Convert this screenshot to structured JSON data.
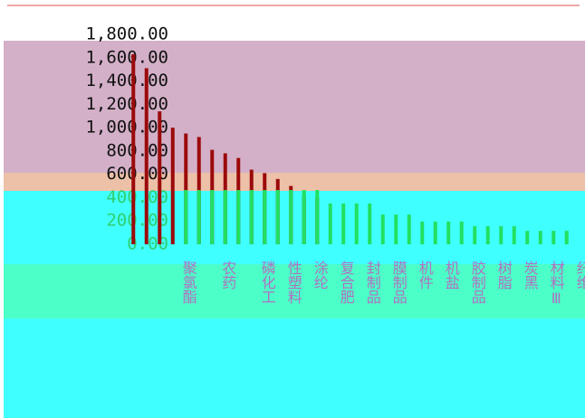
{
  "chart_data": {
    "type": "bar",
    "categories": [
      "聚氯酯",
      null,
      null,
      "农药",
      null,
      null,
      "磷化工",
      null,
      "性塑料",
      null,
      "涂纶",
      null,
      "复合肥",
      null,
      "封制品",
      null,
      "膜制品",
      null,
      "机件",
      null,
      "机盐",
      null,
      "胶制品",
      null,
      "树脂",
      null,
      "炭黑",
      null,
      "材料Ⅲ",
      null,
      "纤维",
      null,
      null,
      null
    ],
    "series": [
      {
        "color": "#9b0a0a",
        "values": [
          1630,
          1510,
          1140,
          1000,
          950,
          920,
          810,
          780,
          740,
          640,
          610,
          560,
          500,
          420,
          400,
          null,
          null,
          null,
          null,
          null,
          null,
          null,
          null,
          null,
          null,
          null,
          null,
          null,
          null,
          null,
          null,
          null,
          null,
          null
        ]
      },
      {
        "color": "#22e060",
        "values": [
          null,
          null,
          null,
          null,
          465,
          465,
          465,
          465,
          465,
          465,
          465,
          465,
          465,
          465,
          465,
          350,
          350,
          350,
          350,
          255,
          255,
          255,
          195,
          195,
          195,
          195,
          155,
          155,
          155,
          155,
          115,
          115,
          115,
          115
        ]
      }
    ],
    "ylim": [
      0,
      1800
    ],
    "yticks": [
      {
        "value": 0,
        "label": "0.00"
      },
      {
        "value": 200,
        "label": "200.00"
      },
      {
        "value": 400,
        "label": "400.00"
      },
      {
        "value": 600,
        "label": "600.00"
      },
      {
        "value": 800,
        "label": "800.00"
      },
      {
        "value": 1000,
        "label": "1,000.00"
      },
      {
        "value": 1200,
        "label": "1,200.00"
      },
      {
        "value": 1400,
        "label": "1,400.00"
      },
      {
        "value": 1600,
        "label": "1,600.00"
      },
      {
        "value": 1800,
        "label": "1,800.00"
      }
    ]
  }
}
